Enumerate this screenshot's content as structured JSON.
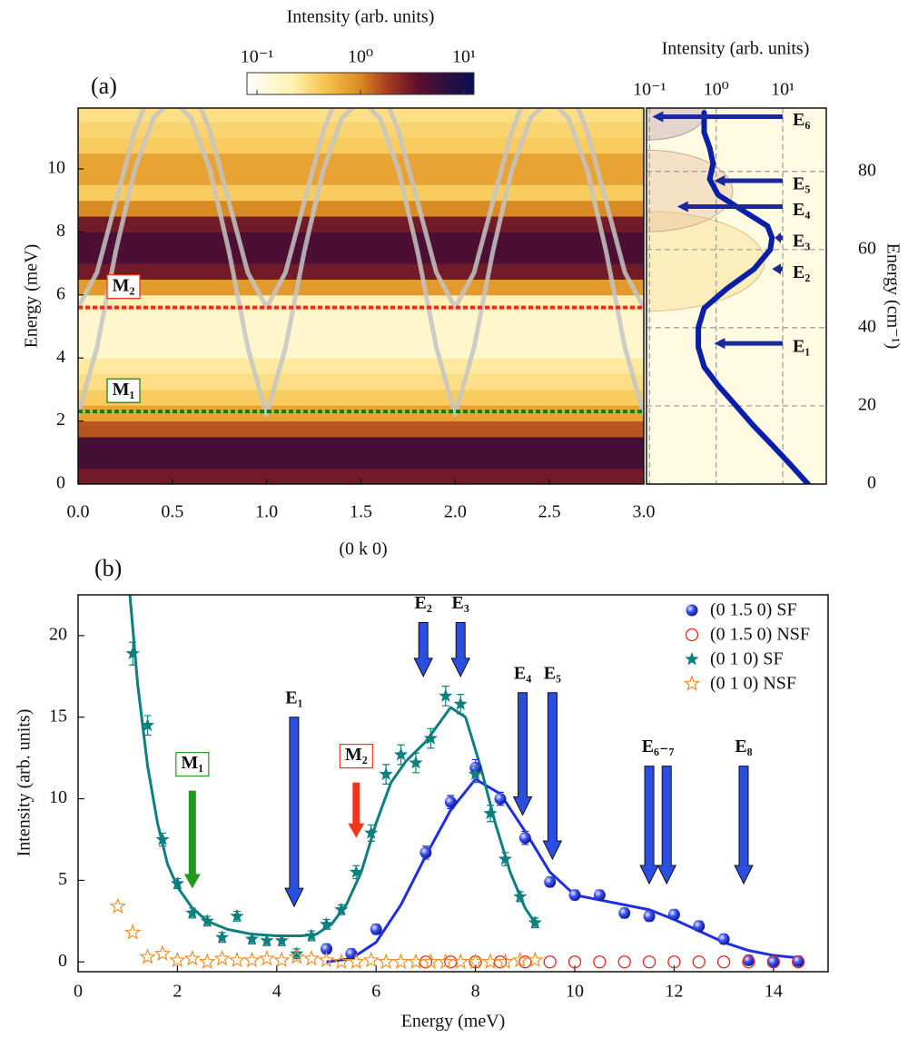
{
  "chart_data": [
    {
      "type": "heatmap",
      "panel_label": "(a)",
      "xlabel": "(0 k 0)",
      "ylabel": "Energy (meV)",
      "xlim": [
        0,
        3
      ],
      "xticks": [
        {
          "value": 0,
          "label": "0.0"
        },
        0.5,
        {
          "value": 1,
          "label": "1.0"
        },
        1.5,
        {
          "value": 2,
          "label": "2.0"
        },
        2.5,
        {
          "value": 3,
          "label": "3.0"
        }
      ],
      "ylim": [
        0,
        11.93
      ],
      "yticks": [
        0,
        2,
        4,
        6,
        8,
        10
      ],
      "colorbar": {
        "title": "Intensity (arb. units)",
        "log": true,
        "lim": [
          0.08,
          12.5
        ],
        "ticks": [
          {
            "value": 0.1,
            "label": "10⁻¹"
          },
          {
            "value": 1,
            "label": "10⁰"
          },
          {
            "value": 10,
            "label": "10¹"
          }
        ]
      },
      "rows": {
        "energy": [
          0,
          0.5,
          1,
          1.5,
          2,
          2.5,
          3,
          3.5,
          4,
          4.5,
          5,
          5.5,
          6,
          6.5,
          7,
          7.5,
          8,
          8.5,
          9,
          9.5,
          10,
          10.5,
          11,
          11.5
        ],
        "values": [
          3,
          5,
          5,
          1.5,
          0.7,
          0.4,
          0.3,
          0.25,
          0.15,
          0.15,
          0.15,
          0.2,
          0.8,
          3,
          4.5,
          4.5,
          3,
          1,
          0.4,
          0.7,
          0.7,
          0.4,
          0.35,
          0.3
        ]
      },
      "dispersion": [
        {
          "x": [
            0,
            0.1,
            0.2,
            0.3,
            0.4,
            0.5,
            0.6,
            0.7,
            0.8,
            0.9,
            1,
            1.1,
            1.2,
            1.3,
            1.4,
            1.5,
            1.6,
            1.7,
            1.8,
            1.9,
            2,
            2.1,
            2.2,
            2.3,
            2.4,
            2.5,
            2.6,
            2.7,
            2.8,
            2.9,
            3
          ],
          "values": [
            2.2,
            4.33,
            7.39,
            9.96,
            11.62,
            12.2,
            11.62,
            9.96,
            7.39,
            4.33,
            2.2,
            4.33,
            7.39,
            9.96,
            11.62,
            12.2,
            11.62,
            9.96,
            7.39,
            4.33,
            2.2,
            4.33,
            7.39,
            9.96,
            11.62,
            12.2,
            11.62,
            9.96,
            7.39,
            4.33,
            2.2
          ]
        },
        {
          "x": [
            0,
            0.1,
            0.2,
            0.3,
            0.4,
            0.5,
            0.6,
            0.7,
            0.8,
            0.9,
            1,
            1.1,
            1.2,
            1.3,
            1.4,
            1.5,
            1.6,
            1.7,
            1.8,
            1.9,
            2,
            2.1,
            2.2,
            2.3,
            2.4,
            2.5,
            2.6,
            2.7,
            2.8,
            2.9,
            3
          ],
          "values": [
            5.6,
            6.71,
            8.96,
            11.19,
            12.71,
            13.24,
            12.71,
            11.19,
            8.96,
            6.71,
            5.6,
            6.71,
            8.96,
            11.19,
            12.71,
            13.24,
            12.71,
            11.19,
            8.96,
            6.71,
            5.6,
            6.71,
            8.96,
            11.19,
            12.71,
            13.24,
            12.71,
            11.19,
            8.96,
            6.71,
            5.6
          ]
        }
      ],
      "lines": [
        {
          "label": "M₁",
          "y": 2.3,
          "color": "#0b7d0b"
        },
        {
          "label": "M₂",
          "y": 5.6,
          "color": "#ee2a1c"
        }
      ]
    },
    {
      "type": "profile",
      "xlabel": "Intensity (arb. units)",
      "y2label": "Energy (cm⁻¹)",
      "xlog": true,
      "xlim": [
        0.09,
        45
      ],
      "xticks": [
        {
          "value": 0.1,
          "label": "10⁻¹"
        },
        {
          "value": 1,
          "label": "10⁰"
        },
        {
          "value": 10,
          "label": "10¹"
        }
      ],
      "y2lim": [
        0,
        96.2
      ],
      "y2ticks": [
        0,
        20,
        40,
        60,
        80
      ],
      "grid": true,
      "color": "#0a1fa8",
      "x": [
        24,
        13,
        6.9,
        3.6,
        2.0,
        1.1,
        0.66,
        0.54,
        0.54,
        0.66,
        1.45,
        3.7,
        6.5,
        6.9,
        5.9,
        2.5,
        1.07,
        0.8,
        0.9,
        0.8,
        0.66,
        0.66
      ],
      "values": [
        0,
        5,
        10,
        15,
        20,
        25,
        30,
        35,
        40,
        45,
        50,
        55,
        60,
        63,
        66,
        70,
        74,
        78,
        82,
        86,
        90,
        95
      ],
      "annotations": [
        {
          "label": "E₁",
          "y": 36,
          "x_tip": 0.93
        },
        {
          "label": "E₂",
          "y": 55,
          "x_tip": 6.9
        },
        {
          "label": "E₃",
          "y": 63,
          "x_tip": 7.6
        },
        {
          "label": "E₄",
          "y": 71,
          "x_tip": 0.26
        },
        {
          "label": "E₅",
          "y": 77.6,
          "x_tip": 0.93
        },
        {
          "label": "E₆",
          "y": 94,
          "x_tip": 0.11
        }
      ]
    },
    {
      "type": "scatter",
      "panel_label": "(b)",
      "xlabel": "Energy (meV)",
      "ylabel": "Intensity (arb. units)",
      "xlim": [
        0,
        15.1
      ],
      "xticks": [
        0,
        2,
        4,
        6,
        8,
        10,
        12,
        14
      ],
      "ylim": [
        -0.6,
        22.5
      ],
      "yticks": [
        0,
        5,
        10,
        15,
        20
      ],
      "legend": "upper right",
      "series": [
        {
          "name": "(0 1.5 0) SF",
          "color": "#1f2fe0",
          "marker": "sphere",
          "x": [
            5,
            5.5,
            6,
            7,
            7.5,
            8,
            8.5,
            9,
            9.5,
            10,
            10.5,
            11,
            11.5,
            12,
            12.5,
            13,
            13.5,
            14,
            14.5
          ],
          "values": [
            0.8,
            0.5,
            2.0,
            6.7,
            9.8,
            11.9,
            10.0,
            7.6,
            4.9,
            4.1,
            4.1,
            3.0,
            2.8,
            2.9,
            2.2,
            1.4,
            0.1,
            0,
            0.05
          ],
          "errors": [
            0.3,
            0.3,
            0.3,
            0.4,
            0.4,
            0.5,
            0.4,
            0.4,
            0.3,
            0.3,
            0.3,
            0.3,
            0.3,
            0.3,
            0.3,
            0.3,
            0.3,
            0.3,
            0.3
          ],
          "fit": {
            "x": [
              5,
              5.5,
              6,
              6.5,
              7,
              7.5,
              8,
              8.5,
              9,
              9.5,
              10,
              10.5,
              11,
              11.5,
              12,
              12.5,
              13,
              13.5,
              14,
              14.5
            ],
            "values": [
              0,
              0.2,
              1.2,
              3.5,
              6.5,
              9.3,
              11.2,
              10.3,
              8.0,
              5.5,
              4.1,
              3.8,
              3.5,
              3.2,
              2.6,
              1.9,
              1.2,
              0.7,
              0.4,
              0.25
            ]
          }
        },
        {
          "name": "(0 1.5 0) NSF",
          "color": "#e8261f",
          "marker": "open-circle",
          "x": [
            7,
            7.5,
            8,
            8.5,
            9,
            9.5,
            10,
            10.5,
            11,
            11.5,
            12,
            12.5,
            13,
            13.5,
            14,
            14.5
          ],
          "values": [
            0,
            0,
            0,
            0,
            0,
            0,
            0,
            0,
            0,
            0,
            0,
            0,
            0,
            0,
            0,
            0
          ]
        },
        {
          "name": "(0 1 0) SF",
          "color": "#0e7f7f",
          "marker": "star",
          "x": [
            1.1,
            1.4,
            1.7,
            2.0,
            2.3,
            2.6,
            2.9,
            3.2,
            3.5,
            3.8,
            4.1,
            4.4,
            4.7,
            5.0,
            5.3,
            5.6,
            5.9,
            6.2,
            6.5,
            6.8,
            7.1,
            7.4,
            7.7,
            8.0,
            8.3,
            8.6,
            8.9,
            9.2
          ],
          "values": [
            18.9,
            14.5,
            7.5,
            4.8,
            3.0,
            2.5,
            1.5,
            2.8,
            1.4,
            1.3,
            1.3,
            0.5,
            1.6,
            2.3,
            3.2,
            5.5,
            7.9,
            11.5,
            12.7,
            12.2,
            13.7,
            16.3,
            15.8,
            11.5,
            9.1,
            6.3,
            4.0,
            2.4
          ],
          "errors": [
            0.7,
            0.6,
            0.4,
            0.3,
            0.3,
            0.3,
            0.3,
            0.3,
            0.3,
            0.3,
            0.3,
            0.3,
            0.3,
            0.3,
            0.3,
            0.4,
            0.5,
            0.6,
            0.6,
            0.6,
            0.6,
            0.6,
            0.6,
            0.5,
            0.5,
            0.4,
            0.3,
            0.3
          ],
          "fit": {
            "x": [
              1.0,
              1.2,
              1.4,
              1.6,
              1.8,
              2.0,
              2.3,
              2.6,
              3.0,
              3.5,
              4.0,
              4.5,
              4.8,
              5.1,
              5.4,
              5.7,
              6.0,
              6.3,
              6.6,
              7.0,
              7.5,
              7.8,
              8.1,
              8.4,
              8.7,
              9.0,
              9.2
            ],
            "values": [
              24,
              17.0,
              12.0,
              8.5,
              6.0,
              4.6,
              3.3,
              2.5,
              2.0,
              1.7,
              1.6,
              1.6,
              1.7,
              2.3,
              3.5,
              5.5,
              8.5,
              11.0,
              12.3,
              13.5,
              15.6,
              15.0,
              12.0,
              8.5,
              5.5,
              3.3,
              2.4
            ]
          }
        },
        {
          "name": "(0 1 0) NSF",
          "color": "#f0902a",
          "marker": "open-star",
          "x": [
            0.8,
            1.1,
            1.4,
            1.7,
            2.0,
            2.3,
            2.6,
            2.9,
            3.2,
            3.5,
            3.8,
            4.1,
            4.4,
            4.7,
            5.0,
            5.3,
            5.6,
            5.9,
            6.2,
            6.5,
            6.8,
            7.1,
            7.4,
            7.7,
            8.0,
            8.3,
            8.6,
            8.9,
            9.2
          ],
          "values": [
            3.4,
            1.8,
            0.3,
            0.5,
            0.1,
            0.2,
            0,
            0.2,
            0.1,
            0.1,
            0.2,
            0.1,
            0.3,
            0.2,
            0.1,
            0,
            0,
            0.1,
            0,
            0,
            0,
            0,
            0,
            0,
            0,
            0,
            0,
            0.1,
            0.1
          ]
        }
      ],
      "annotations": [
        {
          "label": "M₁",
          "x": 2.3,
          "y_from": 10.5,
          "y_to": 4.5,
          "color": "#1f9a1f",
          "boxed": true
        },
        {
          "label": "M₂",
          "x": 5.6,
          "y_from": 11,
          "y_to": 7.6,
          "color": "#f0361c",
          "boxed": true
        },
        {
          "label": "E₁",
          "x": 4.35,
          "y_from": 15,
          "y_to": 3.4,
          "color": "#2a4fe0"
        },
        {
          "label": "E₂",
          "x": 6.95,
          "y_from": 20.8,
          "y_to": 17.5,
          "color": "#2a4fe0"
        },
        {
          "label": "E₃",
          "x": 7.7,
          "y_from": 20.8,
          "y_to": 17.5,
          "color": "#2a4fe0"
        },
        {
          "label": "E₄",
          "x": 8.95,
          "y_from": 16.5,
          "y_to": 9.0,
          "color": "#2a4fe0"
        },
        {
          "label": "E₅",
          "x": 9.55,
          "y_from": 16.5,
          "y_to": 6.3,
          "color": "#2a4fe0"
        },
        {
          "label": "E₆₋₇",
          "x": [
            11.5,
            11.85
          ],
          "y_from": 12,
          "y_to": 4.8,
          "color": "#2a4fe0"
        },
        {
          "label": "E₈",
          "x": 13.4,
          "y_from": 12,
          "y_to": 4.8,
          "color": "#2a4fe0"
        }
      ]
    }
  ]
}
